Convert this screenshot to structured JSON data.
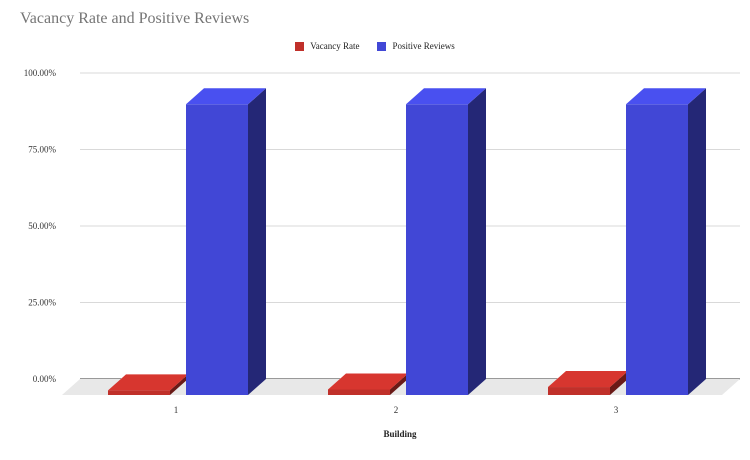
{
  "chart_data": {
    "type": "bar",
    "title": "Vacancy Rate and Positive Reviews",
    "xlabel": "Building",
    "ylabel": "",
    "categories": [
      "1",
      "2",
      "3"
    ],
    "series": [
      {
        "name": "Vacancy Rate",
        "values": [
          1.5,
          1.8,
          2.6
        ],
        "color": "#c0302a"
      },
      {
        "name": "Positive Reviews",
        "values": [
          95,
          95,
          95
        ],
        "color": "#4147d6"
      }
    ],
    "ylim": [
      0,
      100
    ],
    "yticks": [
      "0.00%",
      "25.00%",
      "50.00%",
      "75.00%",
      "100.00%"
    ],
    "grid": true,
    "legend_position": "top-center",
    "style": "3d"
  }
}
